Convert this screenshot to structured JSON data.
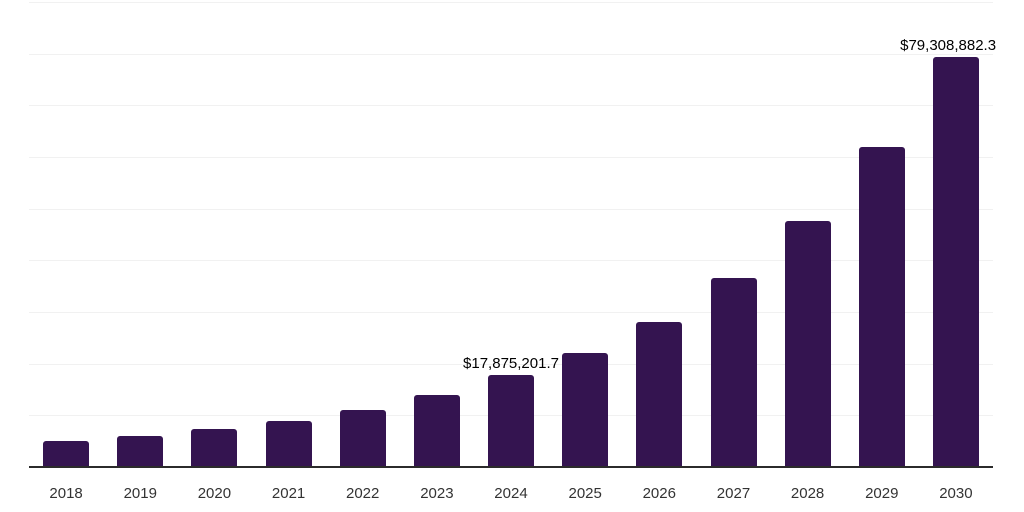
{
  "chart_data": {
    "type": "bar",
    "title": "",
    "xlabel": "",
    "ylabel": "",
    "categories": [
      "2018",
      "2019",
      "2020",
      "2021",
      "2022",
      "2023",
      "2024",
      "2025",
      "2026",
      "2027",
      "2028",
      "2029",
      "2030"
    ],
    "values": [
      5000000,
      6000000,
      7350000,
      8900000,
      11000000,
      13900000,
      17875201.7,
      22000000,
      28050000,
      36600000,
      47600000,
      61900000,
      79308882.3
    ],
    "labeled_points": [
      {
        "category": "2024",
        "label": "$17,875,201.7"
      },
      {
        "category": "2030",
        "label": "$79,308,882.3"
      }
    ],
    "ylim": [
      0,
      90000000
    ],
    "gridline_step": 10000000,
    "grid": "horizontal",
    "legend": "none",
    "bar_color": "#341450",
    "axis_line_color": "#2b2b2b",
    "gridline_color": "#f1f1f1",
    "data_label_color": "#000000",
    "tick_label_color": "#333333",
    "background_color": "#ffffff"
  }
}
